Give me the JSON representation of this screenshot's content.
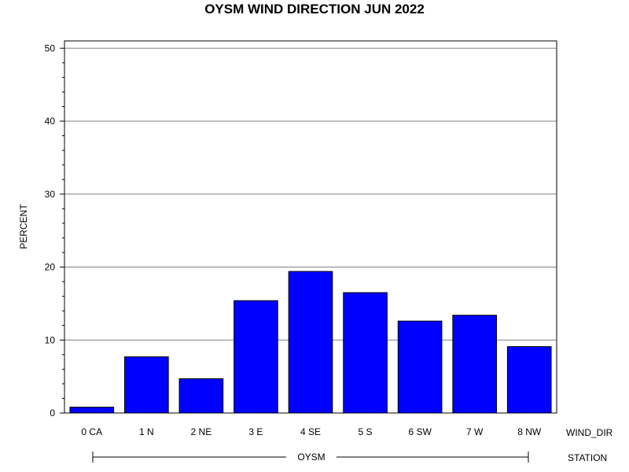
{
  "chart_data": {
    "type": "bar",
    "title": "OYSM WIND DIRECTION JUN 2022",
    "ylabel": "PERCENT",
    "xlabel": "WIND_DIR",
    "group_label": "STATION",
    "group_value": "OYSM",
    "categories": [
      "0 CA",
      "1 N",
      "2 NE",
      "3 E",
      "4 SE",
      "5 S",
      "6 SW",
      "7 W",
      "8 NW"
    ],
    "values": [
      0.8,
      7.7,
      4.7,
      15.4,
      19.4,
      16.5,
      12.6,
      13.4,
      9.1
    ],
    "ylim": [
      0,
      51
    ],
    "yticks": [
      0,
      10,
      20,
      30,
      40,
      50
    ],
    "grid": true,
    "bar_color": "#0000ff",
    "legend": "none"
  }
}
